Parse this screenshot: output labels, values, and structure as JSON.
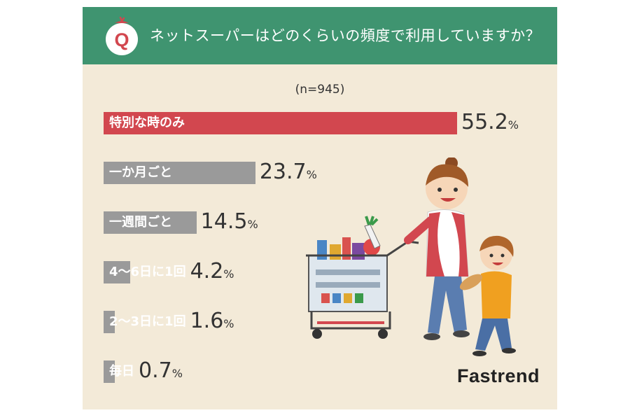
{
  "header": {
    "badge_letter": "Q",
    "question": "ネットスーパーはどのくらいの頻度で利用していますか？",
    "background": "#3f9470"
  },
  "sample_size": "(n=945)",
  "chart_data": {
    "type": "bar",
    "orientation": "horizontal",
    "categories": [
      "特別な時のみ",
      "一か月ごと",
      "一週間ごと",
      "4〜6日に1回",
      "2〜3日に1回",
      "毎日"
    ],
    "values": [
      55.2,
      23.7,
      14.5,
      4.2,
      1.6,
      0.7
    ],
    "value_labels": [
      "55.2",
      "23.7",
      "14.5",
      "4.2",
      "1.6",
      "0.7"
    ],
    "unit": "%",
    "colors": [
      "#d2474f",
      "#9a9a9a",
      "#9a9a9a",
      "#9a9a9a",
      "#9a9a9a",
      "#9a9a9a"
    ],
    "xlim": [
      0,
      55.2
    ]
  },
  "brand": "Fastrend"
}
